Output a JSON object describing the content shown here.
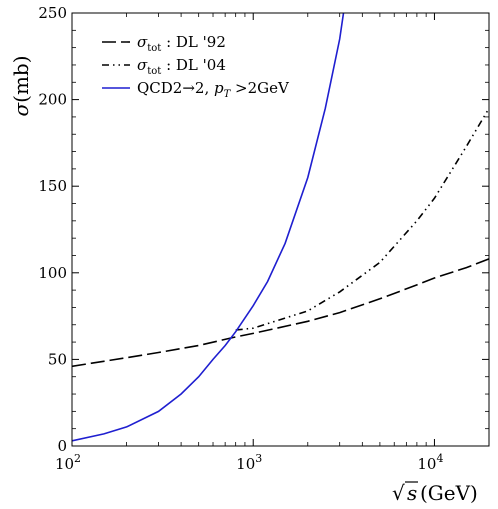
{
  "chart_data": {
    "type": "line",
    "xscale": "log",
    "xlim": [
      100,
      20000
    ],
    "ylim": [
      0,
      250
    ],
    "xlabel": "√s (GeV)",
    "ylabel": "σ (mb)",
    "xticks": [
      {
        "value": 100,
        "base": "10",
        "exp": "2"
      },
      {
        "value": 1000,
        "base": "10",
        "exp": "3"
      },
      {
        "value": 10000,
        "base": "10",
        "exp": "4"
      }
    ],
    "yticks": [
      0,
      50,
      100,
      150,
      200,
      250
    ],
    "grid": false,
    "legend_position": "top-left",
    "series": [
      {
        "name": "σtot : DL '92",
        "legend": {
          "symbol": "σ",
          "sub": "tot",
          "rest": " : DL '92"
        },
        "color": "#000000",
        "dash": "dashed",
        "x": [
          100,
          200,
          300,
          500,
          800,
          1000,
          2000,
          3000,
          5000,
          8000,
          10000,
          15000,
          20000
        ],
        "y": [
          46,
          51,
          54,
          58,
          63,
          65,
          72,
          77,
          85,
          93,
          97,
          103,
          108
        ]
      },
      {
        "name": "σtot : DL '04",
        "legend": {
          "symbol": "σ",
          "sub": "tot",
          "rest": " : DL '04"
        },
        "color": "#000000",
        "dash": "dashdotdot",
        "x": [
          800,
          1000,
          2000,
          3000,
          5000,
          8000,
          10000,
          15000,
          20000
        ],
        "y": [
          67,
          68,
          78,
          89,
          106,
          130,
          143,
          173,
          195
        ]
      },
      {
        "name": "QCD2→2, pT > 2GeV",
        "legend": {
          "prefix": "QCD2→2, ",
          "symbol": "p",
          "sub": "T",
          "rest": " >2GeV"
        },
        "color": "#1f1fd0",
        "dash": "solid",
        "x": [
          100,
          150,
          200,
          300,
          400,
          500,
          600,
          700,
          800,
          1000,
          1200,
          1500,
          2000,
          2500,
          3000,
          3150
        ],
        "y": [
          3,
          7,
          11,
          20,
          30,
          40,
          50,
          58,
          66,
          81,
          95,
          117,
          155,
          195,
          235,
          250
        ]
      }
    ]
  }
}
